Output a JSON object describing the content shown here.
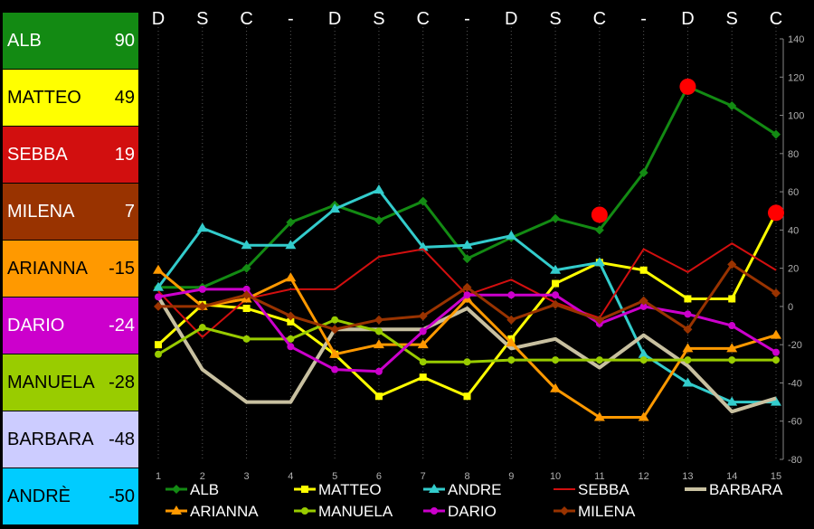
{
  "scoreboard": [
    {
      "name": "ALB",
      "score": "90",
      "bg": "#138a13",
      "text": "#ffffff"
    },
    {
      "name": "MATTEO",
      "score": "49",
      "bg": "#ffff00",
      "text": "#000000"
    },
    {
      "name": "SEBBA",
      "score": "19",
      "bg": "#d20f0f",
      "text": "#ffffff"
    },
    {
      "name": "MILENA",
      "score": "7",
      "bg": "#993300",
      "text": "#ffffff"
    },
    {
      "name": "ARIANNA",
      "score": "-15",
      "bg": "#ff9900",
      "text": "#000000"
    },
    {
      "name": "DARIO",
      "score": "-24",
      "bg": "#cc00cc",
      "text": "#ffffff"
    },
    {
      "name": "MANUELA",
      "score": "-28",
      "bg": "#99cc00",
      "text": "#000000"
    },
    {
      "name": "BARBARA",
      "score": "-48",
      "bg": "#ccccff",
      "text": "#000000"
    },
    {
      "name": "ANDRÈ",
      "score": "-50",
      "bg": "#00ccff",
      "text": "#000000"
    }
  ],
  "chart_data": {
    "type": "line",
    "day_labels": [
      "D",
      "S",
      "C",
      "-",
      "D",
      "S",
      "C",
      "-",
      "D",
      "S",
      "C",
      "-",
      "D",
      "S",
      "C"
    ],
    "x": [
      1,
      2,
      3,
      4,
      5,
      6,
      7,
      8,
      9,
      10,
      11,
      12,
      13,
      14,
      15
    ],
    "ylim": [
      -80,
      140
    ],
    "yticks": [
      140,
      120,
      100,
      80,
      60,
      40,
      20,
      0,
      -20,
      -40,
      -60,
      -80
    ],
    "grid": "vertical dotted",
    "legend_position": "bottom",
    "series": [
      {
        "name": "ALB",
        "color": "#138a13",
        "marker": "diamond",
        "values": [
          10,
          10,
          20,
          44,
          53,
          45,
          55,
          25,
          36,
          46,
          40,
          70,
          115,
          105,
          90
        ]
      },
      {
        "name": "MATTEO",
        "color": "#ffff00",
        "marker": "square",
        "values": [
          -20,
          1,
          -1,
          -8,
          -25,
          -47,
          -37,
          -47,
          -17,
          12,
          23,
          19,
          4,
          4,
          49
        ]
      },
      {
        "name": "ANDRE",
        "color": "#33cccc",
        "marker": "triangle",
        "values": [
          10,
          41,
          32,
          32,
          51,
          61,
          31,
          32,
          37,
          19,
          23,
          -25,
          -40,
          -50,
          -50
        ]
      },
      {
        "name": "SEBBA",
        "color": "#d20f0f",
        "marker": "none",
        "values": [
          8,
          -16,
          4,
          9,
          9,
          26,
          30,
          6,
          14,
          2,
          -6,
          30,
          18,
          33,
          19
        ]
      },
      {
        "name": "BARBARA",
        "color": "#c8c0a0",
        "marker": "none",
        "values": [
          5,
          -33,
          -50,
          -50,
          -12,
          -12,
          -12,
          -1,
          -22,
          -17,
          -32,
          -15,
          -31,
          -55,
          -48
        ]
      },
      {
        "name": "ARIANNA",
        "color": "#ff9900",
        "marker": "triangle",
        "values": [
          19,
          0,
          4,
          15,
          -25,
          -20,
          -20,
          4,
          -19,
          -43,
          -58,
          -58,
          -22,
          -22,
          -15
        ]
      },
      {
        "name": "MANUELA",
        "color": "#99cc00",
        "marker": "circle",
        "values": [
          -25,
          -11,
          -17,
          -17,
          -7,
          -13,
          -29,
          -29,
          -28,
          -28,
          -28,
          -28,
          -28,
          -28,
          -28
        ]
      },
      {
        "name": "DARIO",
        "color": "#cc00cc",
        "marker": "circle",
        "values": [
          5,
          9,
          9,
          -21,
          -33,
          -34,
          -13,
          6,
          6,
          6,
          -9,
          0,
          -4,
          -10,
          -24
        ]
      },
      {
        "name": "MILENA",
        "color": "#993300",
        "marker": "diamond",
        "values": [
          0,
          0,
          6,
          -5,
          -12,
          -7,
          -5,
          10,
          -7,
          1,
          -7,
          3,
          -12,
          22,
          7
        ]
      }
    ],
    "highlights": [
      {
        "x": 11,
        "y": 48
      },
      {
        "x": 13,
        "y": 115
      },
      {
        "x": 15,
        "y": 49
      }
    ]
  }
}
